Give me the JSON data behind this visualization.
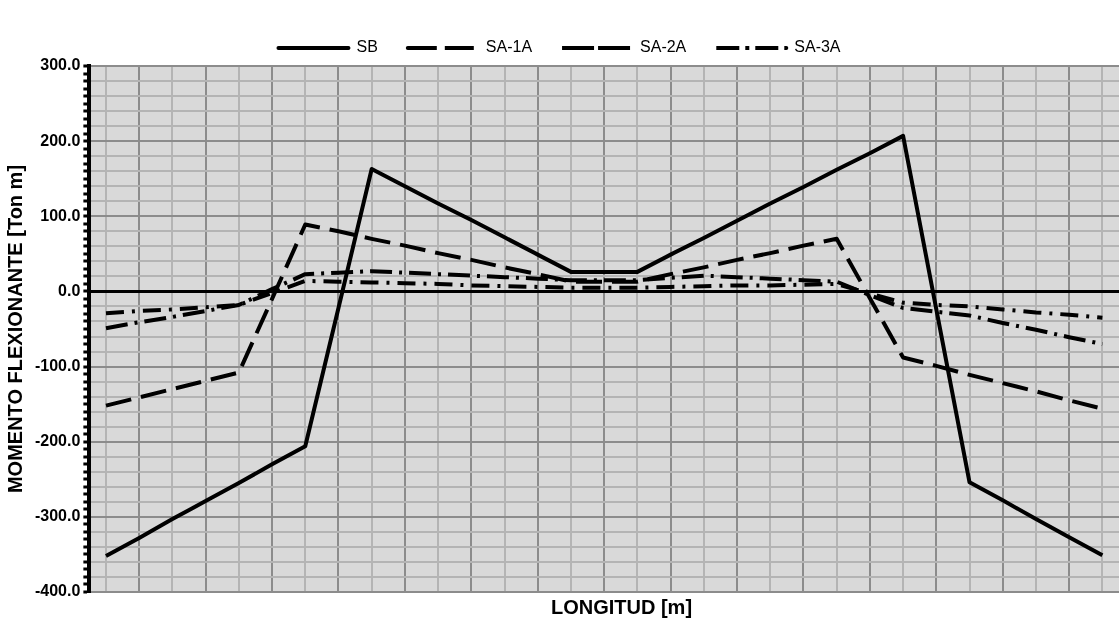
{
  "chart_data": {
    "type": "line",
    "xlabel": "LONGITUD [m]",
    "ylabel": "MOMENTO FLEXIONANTE [Ton m]",
    "categories": [
      null,
      null,
      null,
      null,
      null,
      null,
      null,
      null,
      null,
      null,
      null,
      null,
      null,
      null,
      null,
      null,
      null,
      null,
      null,
      null,
      null,
      null,
      null,
      null,
      null,
      null,
      null,
      null,
      null,
      null,
      null
    ],
    "series": [
      {
        "name": "SB",
        "color": "#000000",
        "line_style": "solid",
        "values": [
          -352,
          -328,
          -303,
          -279,
          -255,
          -230,
          -206,
          -22,
          163,
          140,
          117,
          95,
          72,
          49,
          26,
          26,
          26,
          49,
          71,
          94,
          117,
          139,
          162,
          184,
          207,
          -24,
          -254,
          -278,
          -303,
          -327,
          -351
        ]
      },
      {
        "name": "SA-1A",
        "color": "#000000",
        "line_style": "dashed",
        "values": [
          -29,
          -26,
          -24,
          -21,
          -18,
          -2,
          14,
          13,
          12,
          11,
          10,
          8,
          7,
          6,
          5,
          5,
          5,
          6,
          7,
          8,
          8,
          9,
          10,
          -3,
          -15,
          -18,
          -20,
          -24,
          -28,
          -31,
          -35
        ]
      },
      {
        "name": "SA-2A",
        "color": "#000000",
        "line_style": "dashed",
        "values": [
          -152,
          -141,
          -130,
          -119,
          -108,
          -10,
          89,
          80,
          70,
          61,
          51,
          42,
          32,
          23,
          13,
          13,
          13,
          23,
          32,
          42,
          51,
          61,
          70,
          -9,
          -88,
          -99,
          -111,
          -122,
          -133,
          -145,
          -156
        ]
      },
      {
        "name": "SA-3A",
        "color": "#000000",
        "line_style": "dashed",
        "values": [
          -49,
          -41,
          -34,
          -26,
          -18,
          3,
          23,
          25,
          27,
          25,
          23,
          21,
          19,
          17,
          15,
          15,
          15,
          18,
          21,
          19,
          17,
          15,
          13,
          -5,
          -22,
          -27,
          -32,
          -42,
          -51,
          -61,
          -70
        ]
      }
    ],
    "ylim": [
      -400,
      300
    ],
    "yticks": [
      {
        "value": -400,
        "label": "-400.0"
      },
      {
        "value": -390,
        "label": null
      },
      {
        "value": -380,
        "label": null
      },
      {
        "value": -370,
        "label": null
      },
      {
        "value": -360,
        "label": null
      },
      {
        "value": -350,
        "label": null
      },
      {
        "value": -340,
        "label": null
      },
      {
        "value": -330,
        "label": null
      },
      {
        "value": -320,
        "label": null
      },
      {
        "value": -310,
        "label": null
      },
      {
        "value": -300,
        "label": "-300.0"
      },
      {
        "value": -290,
        "label": null
      },
      {
        "value": -280,
        "label": null
      },
      {
        "value": -270,
        "label": null
      },
      {
        "value": -260,
        "label": null
      },
      {
        "value": -250,
        "label": null
      },
      {
        "value": -240,
        "label": null
      },
      {
        "value": -230,
        "label": null
      },
      {
        "value": -220,
        "label": null
      },
      {
        "value": -210,
        "label": null
      },
      {
        "value": -200,
        "label": "-200.0"
      },
      {
        "value": -190,
        "label": null
      },
      {
        "value": -180,
        "label": null
      },
      {
        "value": -170,
        "label": null
      },
      {
        "value": -160,
        "label": null
      },
      {
        "value": -150,
        "label": null
      },
      {
        "value": -140,
        "label": null
      },
      {
        "value": -130,
        "label": null
      },
      {
        "value": -120,
        "label": null
      },
      {
        "value": -110,
        "label": null
      },
      {
        "value": -100,
        "label": "-100.0"
      },
      {
        "value": -90,
        "label": null
      },
      {
        "value": -80,
        "label": null
      },
      {
        "value": -70,
        "label": null
      },
      {
        "value": -60,
        "label": null
      },
      {
        "value": -50,
        "label": null
      },
      {
        "value": -40,
        "label": null
      },
      {
        "value": -30,
        "label": null
      },
      {
        "value": -20,
        "label": null
      },
      {
        "value": -10,
        "label": null
      },
      {
        "value": 0,
        "label": "0.0"
      },
      {
        "value": 10,
        "label": null
      },
      {
        "value": 20,
        "label": null
      },
      {
        "value": 30,
        "label": null
      },
      {
        "value": 40,
        "label": null
      },
      {
        "value": 50,
        "label": null
      },
      {
        "value": 60,
        "label": null
      },
      {
        "value": 70,
        "label": null
      },
      {
        "value": 80,
        "label": null
      },
      {
        "value": 90,
        "label": null
      },
      {
        "value": 100,
        "label": "100.0"
      },
      {
        "value": 110,
        "label": null
      },
      {
        "value": 120,
        "label": null
      },
      {
        "value": 130,
        "label": null
      },
      {
        "value": 140,
        "label": null
      },
      {
        "value": 150,
        "label": null
      },
      {
        "value": 160,
        "label": null
      },
      {
        "value": 170,
        "label": null
      },
      {
        "value": 180,
        "label": null
      },
      {
        "value": 190,
        "label": null
      },
      {
        "value": 200,
        "label": "200.0"
      },
      {
        "value": 210,
        "label": null
      },
      {
        "value": 220,
        "label": null
      },
      {
        "value": 230,
        "label": null
      },
      {
        "value": 240,
        "label": null
      },
      {
        "value": 250,
        "label": null
      },
      {
        "value": 260,
        "label": null
      },
      {
        "value": 270,
        "label": null
      },
      {
        "value": 280,
        "label": null
      },
      {
        "value": 290,
        "label": null
      },
      {
        "value": 300,
        "label": "300.0"
      }
    ],
    "grid": true,
    "legend": "top",
    "marker": "none",
    "tick_labels": "y"
  }
}
